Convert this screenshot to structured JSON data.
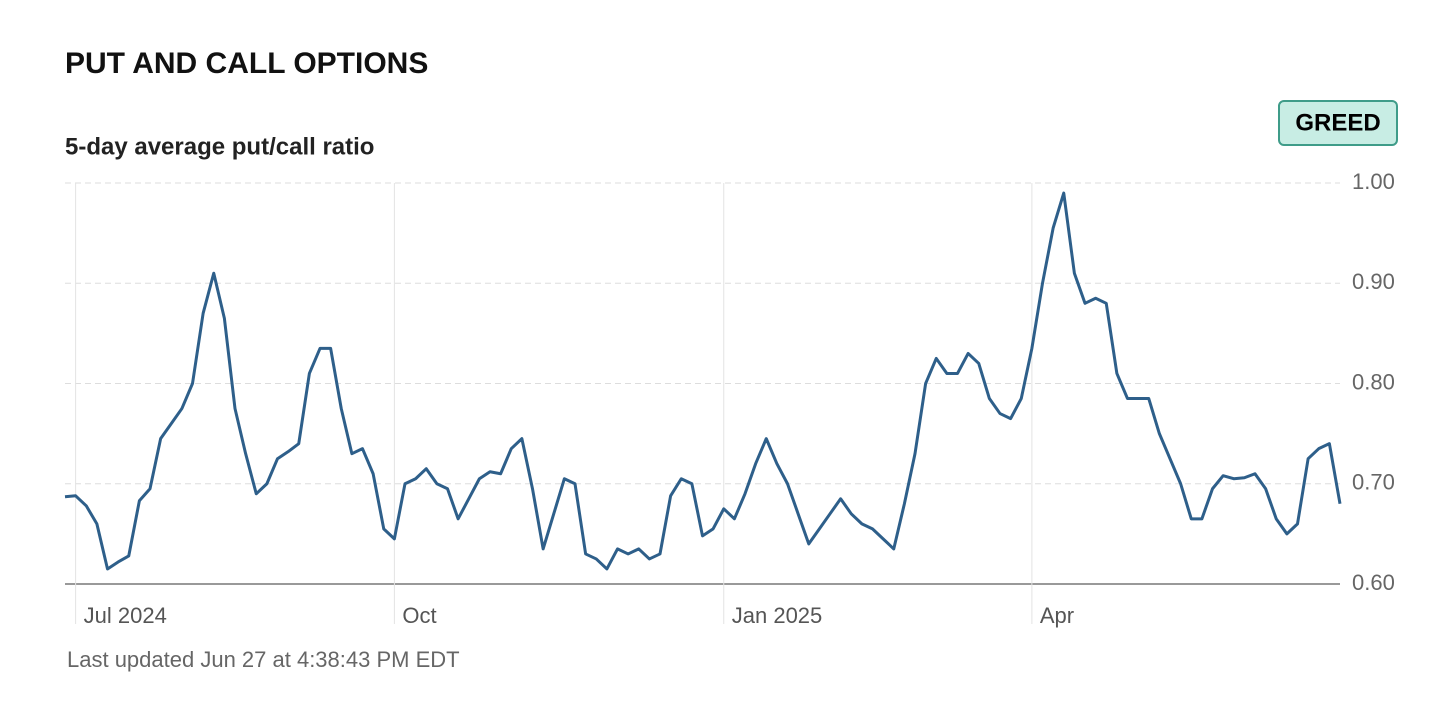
{
  "title": "PUT AND CALL OPTIONS",
  "badge": "GREED",
  "footnote": "Last updated Jun 27 at 4:38:43 PM EDT",
  "chart_data": {
    "type": "line",
    "subtitle": "5-day average put/call ratio",
    "categories": [
      null,
      "Jul 2024",
      null,
      null,
      null,
      null,
      null,
      null,
      null,
      null,
      null,
      null,
      null,
      null,
      null,
      null,
      null,
      null,
      null,
      null,
      null,
      null,
      null,
      null,
      null,
      null,
      null,
      null,
      null,
      null,
      null,
      "Oct",
      null,
      null,
      null,
      null,
      null,
      null,
      null,
      null,
      null,
      null,
      null,
      null,
      null,
      null,
      null,
      null,
      null,
      null,
      null,
      null,
      null,
      null,
      null,
      null,
      null,
      null,
      null,
      null,
      null,
      null,
      "Jan 2025",
      null,
      null,
      null,
      null,
      null,
      null,
      null,
      null,
      null,
      null,
      null,
      null,
      null,
      null,
      null,
      null,
      null,
      null,
      null,
      null,
      null,
      null,
      null,
      null,
      null,
      null,
      null,
      null,
      "Apr",
      null,
      null,
      null,
      null,
      null,
      null,
      null,
      null,
      null,
      null,
      null,
      null,
      null,
      null,
      null,
      null,
      null,
      null,
      null,
      null,
      null,
      null,
      null,
      null,
      null,
      null,
      null,
      null,
      null
    ],
    "series": [
      {
        "name": "5-day average put/call ratio",
        "color": "#2e5f8a",
        "values": [
          0.687,
          0.688,
          0.678,
          0.66,
          0.615,
          0.622,
          0.628,
          0.683,
          0.695,
          0.745,
          0.76,
          0.775,
          0.8,
          0.87,
          0.91,
          0.865,
          0.775,
          0.73,
          0.69,
          0.7,
          0.725,
          0.732,
          0.74,
          0.81,
          0.835,
          0.835,
          0.775,
          0.73,
          0.735,
          0.71,
          0.655,
          0.645,
          0.7,
          0.705,
          0.715,
          0.7,
          0.695,
          0.665,
          0.685,
          0.705,
          0.712,
          0.71,
          0.735,
          0.745,
          0.695,
          0.635,
          0.67,
          0.705,
          0.7,
          0.63,
          0.625,
          0.615,
          0.635,
          0.63,
          0.635,
          0.625,
          0.63,
          0.688,
          0.705,
          0.7,
          0.648,
          0.655,
          0.675,
          0.665,
          0.69,
          0.72,
          0.745,
          0.72,
          0.7,
          0.67,
          0.64,
          0.655,
          0.67,
          0.685,
          0.67,
          0.66,
          0.655,
          0.645,
          0.635,
          0.68,
          0.73,
          0.8,
          0.825,
          0.81,
          0.81,
          0.83,
          0.82,
          0.785,
          0.77,
          0.765,
          0.785,
          0.835,
          0.9,
          0.955,
          0.99,
          0.91,
          0.88,
          0.885,
          0.88,
          0.81,
          0.785,
          0.785,
          0.785,
          0.75,
          0.725,
          0.7,
          0.665,
          0.665,
          0.695,
          0.708,
          0.705,
          0.706,
          0.71,
          0.695,
          0.665,
          0.65,
          0.66,
          0.725,
          0.735,
          0.74,
          0.68
        ]
      }
    ],
    "ylim": [
      0.6,
      1.0
    ],
    "yticks": [
      {
        "value": 0.6,
        "label": "0.60"
      },
      {
        "value": 0.7,
        "label": "0.70"
      },
      {
        "value": 0.8,
        "label": "0.80"
      },
      {
        "value": 0.9,
        "label": "0.90"
      },
      {
        "value": 1.0,
        "label": "1.00"
      }
    ],
    "grid": true
  }
}
